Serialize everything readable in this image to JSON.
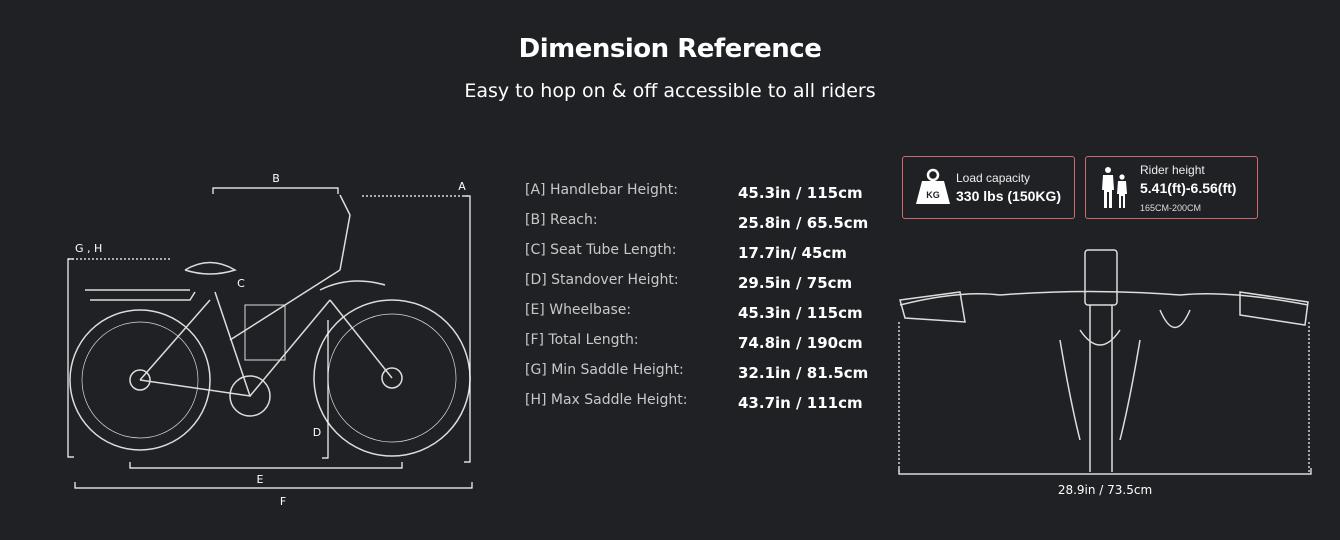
{
  "header": {
    "title": "Dimension Reference",
    "subtitle": "Easy to hop on & off accessible to all riders"
  },
  "side_view": {
    "labels": {
      "a": "A",
      "b": "B",
      "c": "C",
      "d": "D",
      "e": "E",
      "f": "F",
      "gh": "G , H"
    }
  },
  "specs": [
    {
      "label": "[A] Handlebar Height:",
      "value": "45.3in / 115cm"
    },
    {
      "label": "[B] Reach:",
      "value": "25.8in / 65.5cm"
    },
    {
      "label": "[C] Seat Tube Length:",
      "value": "17.7in/ 45cm"
    },
    {
      "label": "[D] Standover Height:",
      "value": "29.5in / 75cm"
    },
    {
      "label": "[E] Wheelbase:",
      "value": "45.3in / 115cm"
    },
    {
      "label": "[F] Total Length:",
      "value": "74.8in / 190cm"
    },
    {
      "label": "[G] Min Saddle Height:",
      "value": "32.1in / 81.5cm"
    },
    {
      "label": "[H] Max Saddle Height:",
      "value": "43.7in / 111cm"
    }
  ],
  "cards": {
    "load": {
      "icon": "weight-kg-icon",
      "icon_text": "KG",
      "title": "Load capacity",
      "value": "330 lbs (150KG)"
    },
    "rider": {
      "icon": "riders-icon",
      "title": "Rider height",
      "value": "5.41(ft)-6.56(ft)",
      "sub": "165CM-200CM"
    }
  },
  "front_view": {
    "width_label": "28.9in / 73.5cm"
  },
  "colors": {
    "background": "#1f2124",
    "card_border": "#d06a6a"
  }
}
